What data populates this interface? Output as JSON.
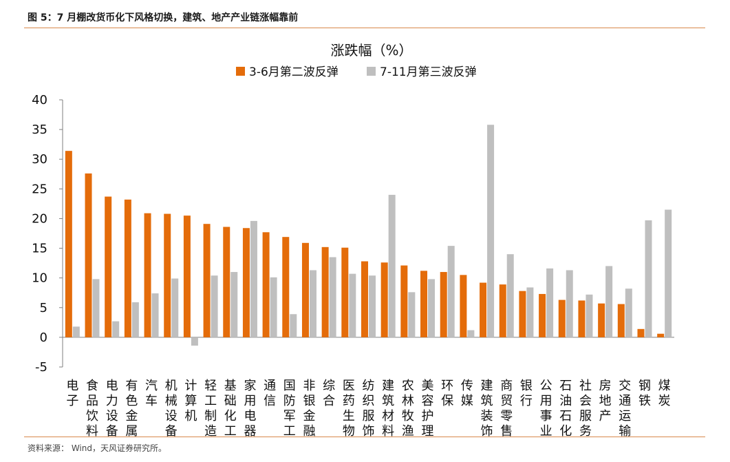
{
  "figure_caption": "图 5：7 月棚改货币化下风格切换，建筑、地产产业链涨幅靠前",
  "source_note": "资料来源： Wind，天风证券研究所。",
  "colors": {
    "series1": "#e46c0a",
    "series2": "#bfbfbf",
    "axis": "#7f7f7f",
    "rule": "#d8884a"
  },
  "chart_data": {
    "type": "bar",
    "title": "涨跌幅（%）",
    "xlabel": "",
    "ylabel": "",
    "ylim": [
      -5,
      40
    ],
    "yticks": [
      -5,
      0,
      5,
      10,
      15,
      20,
      25,
      30,
      35,
      40
    ],
    "grid": false,
    "legend": "top",
    "categories": [
      "电子",
      "食品饮料",
      "电力设备",
      "有色金属",
      "汽车",
      "机械设备",
      "计算机",
      "轻工制造",
      "基础化工",
      "家用电器",
      "通信",
      "国防军工",
      "非银金融",
      "综合",
      "医药生物",
      "纺织服饰",
      "建筑材料",
      "农林牧渔",
      "美容护理",
      "环保",
      "传媒",
      "建筑装饰",
      "商贸零售",
      "银行",
      "公用事业",
      "石油石化",
      "社会服务",
      "房地产",
      "交通运输",
      "钢铁",
      "煤炭"
    ],
    "series": [
      {
        "name": "3-6月第二波反弹",
        "values": [
          31.4,
          27.6,
          23.7,
          23.2,
          20.9,
          20.8,
          20.5,
          19.1,
          18.6,
          18.4,
          17.7,
          16.9,
          15.9,
          15.2,
          15.1,
          12.8,
          12.6,
          12.1,
          11.2,
          11.0,
          10.5,
          9.2,
          8.9,
          7.8,
          7.3,
          6.3,
          6.2,
          5.7,
          5.6,
          1.4,
          0.6
        ]
      },
      {
        "name": "7-11月第三波反弹",
        "values": [
          1.8,
          9.8,
          2.7,
          5.9,
          7.4,
          9.9,
          -1.4,
          10.4,
          11.0,
          19.6,
          10.1,
          3.9,
          11.3,
          13.5,
          10.7,
          10.4,
          24.0,
          7.6,
          9.8,
          15.4,
          1.2,
          35.8,
          14.0,
          8.4,
          11.6,
          11.3,
          7.2,
          12.0,
          8.2,
          19.7,
          21.5
        ]
      }
    ]
  }
}
